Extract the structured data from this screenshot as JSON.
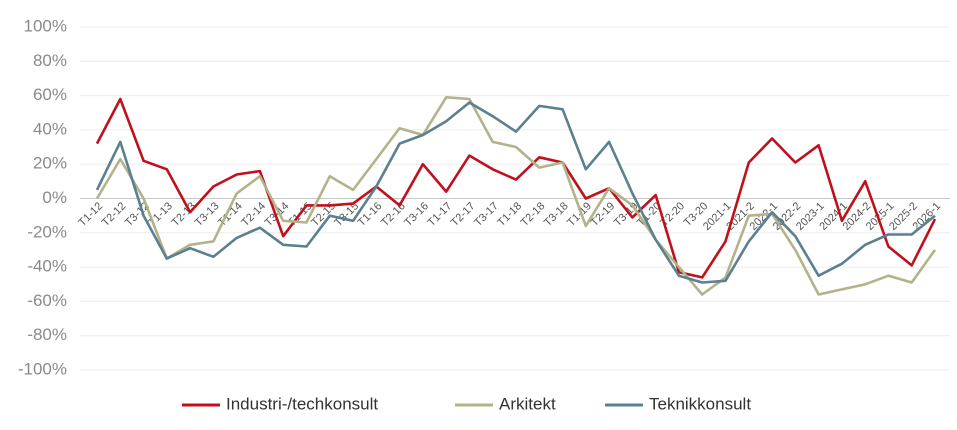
{
  "chart_data": {
    "type": "line",
    "categories": [
      "T1-12",
      "T2-12",
      "T3-12",
      "T1-13",
      "T2-13",
      "T3-13",
      "T1-14",
      "T2-14",
      "T3-14",
      "T1-15",
      "T2-15",
      "T3-15",
      "T1-16",
      "T2-16",
      "T3-16",
      "T1-17",
      "T2-17",
      "T3-17",
      "T1-18",
      "T2-18",
      "T3-18",
      "T1-19",
      "T2-19",
      "T3-19",
      "T1-20",
      "T2-20",
      "T3-20",
      "2021-1",
      "2021-2",
      "2022-1",
      "2022-2",
      "2023-1",
      "2024-1",
      "2024-2",
      "2025-1",
      "2025-2",
      "2026-1"
    ],
    "series": [
      {
        "name": "Industri-/techkonsult",
        "color": "#c0101c",
        "values": [
          32,
          58,
          22,
          17,
          -8,
          7,
          14,
          16,
          -22,
          -4,
          -4,
          -3,
          7,
          -4,
          20,
          4,
          25,
          17,
          11,
          24,
          21,
          0,
          6,
          -11,
          2,
          -43,
          -46,
          -25,
          21,
          35,
          21,
          31,
          -13,
          10,
          -28,
          -39,
          -12
        ]
      },
      {
        "name": "Arkitekt",
        "color": "#b3b38a",
        "values": [
          0,
          23,
          0,
          -35,
          -27,
          -25,
          3,
          13,
          -13,
          -14,
          13,
          5,
          23,
          41,
          37,
          59,
          58,
          33,
          30,
          18,
          21,
          -16,
          6,
          -4,
          -24,
          -40,
          -56,
          -46,
          -10,
          -9,
          -30,
          -56,
          -53,
          -50,
          -45,
          -49,
          -30
        ]
      },
      {
        "name": "Teknikkonsult",
        "color": "#5b808f",
        "values": [
          5,
          33,
          -10,
          -35,
          -29,
          -34,
          -23,
          -17,
          -27,
          -28,
          -10,
          -13,
          7,
          32,
          37,
          45,
          56,
          48,
          39,
          54,
          52,
          17,
          33,
          3,
          -24,
          -45,
          -49,
          -48,
          -25,
          -8,
          -22,
          -45,
          -38,
          -27,
          -21,
          -21,
          -10
        ]
      }
    ],
    "ylim": [
      -100,
      100
    ],
    "yticks": [
      {
        "value": -100,
        "label": "-100%"
      },
      {
        "value": -80,
        "label": "-80%"
      },
      {
        "value": -60,
        "label": "-60%"
      },
      {
        "value": -40,
        "label": "-40%"
      },
      {
        "value": -20,
        "label": "-20%"
      },
      {
        "value": 0,
        "label": "0%"
      },
      {
        "value": 20,
        "label": "20%"
      },
      {
        "value": 40,
        "label": "40%"
      },
      {
        "value": 60,
        "label": "60%"
      },
      {
        "value": 80,
        "label": "80%"
      },
      {
        "value": 100,
        "label": "100%"
      }
    ],
    "grid": true,
    "legend": "bottom"
  }
}
